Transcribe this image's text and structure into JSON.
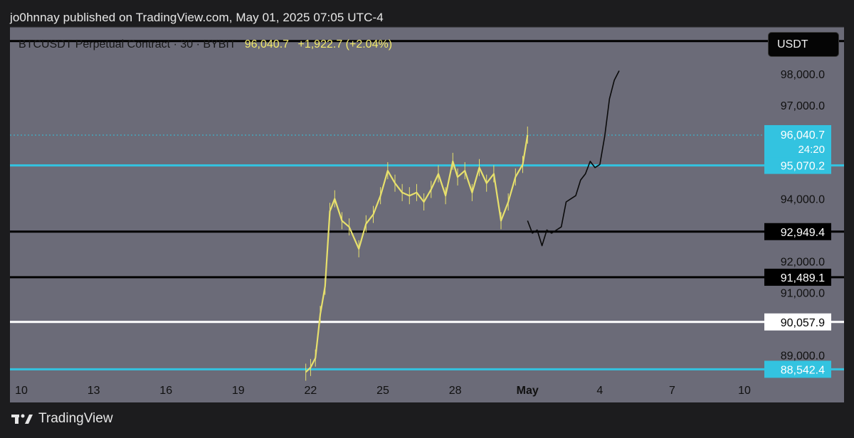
{
  "publish": "jo0hnnay published on TradingView.com, May 01, 2025 07:05 UTC-4",
  "header": {
    "symbol": "BTCUSDT Perpetual Contract · 30 · BYBIT",
    "price": "96,040.7",
    "change": "+1,922.7 (+2.04%)"
  },
  "currency_button": "USDT",
  "footer": {
    "brand": "TradingView"
  },
  "colors": {
    "plot_bg": "#6b6b78",
    "cyan": "#33c3e0",
    "black": "#000000",
    "white": "#ffffff",
    "candles": "#e7e06c"
  },
  "chart_data": {
    "type": "line",
    "x_ticks": [
      "10",
      "13",
      "16",
      "19",
      "22",
      "25",
      "28",
      "May",
      "4",
      "7",
      "10"
    ],
    "y_ticks": [
      "98,000.0",
      "97,000.0",
      "94,000.0",
      "92,000.0",
      "91,000.0",
      "89,000.0"
    ],
    "ylim": [
      88300,
      99500
    ],
    "last_price": {
      "value": 96040.7,
      "label": "96,040.7",
      "countdown": "24:20"
    },
    "levels": [
      {
        "value": 99050,
        "label": "",
        "color": "black"
      },
      {
        "value": 95070.2,
        "label": "95,070.2",
        "color": "cyan"
      },
      {
        "value": 92949.4,
        "label": "92,949.4",
        "color": "black"
      },
      {
        "value": 91489.1,
        "label": "91,489.1",
        "color": "black"
      },
      {
        "value": 90057.9,
        "label": "90,057.9",
        "color": "white"
      },
      {
        "value": 88542.4,
        "label": "88,542.4",
        "color": "cyan"
      }
    ],
    "price_series": {
      "name": "",
      "x": [
        21.8,
        22.0,
        22.2,
        22.4,
        22.6,
        22.8,
        23.0,
        23.3,
        23.6,
        24.0,
        24.3,
        24.6,
        24.9,
        25.2,
        25.5,
        25.8,
        26.1,
        26.4,
        26.7,
        27.0,
        27.3,
        27.6,
        27.9,
        28.1,
        28.4,
        28.7,
        29.0,
        29.3,
        29.6,
        29.9,
        30.2,
        30.5,
        30.8,
        31.0
      ],
      "y": [
        88450,
        88600,
        88900,
        90300,
        91200,
        93600,
        94000,
        93300,
        93100,
        92400,
        93200,
        93500,
        94100,
        94900,
        94500,
        94200,
        94100,
        94200,
        93900,
        94300,
        94800,
        94100,
        95200,
        94700,
        94900,
        94200,
        95000,
        94500,
        94800,
        93300,
        93900,
        94700,
        95100,
        96040.7
      ]
    },
    "projection": {
      "x": [
        31.0,
        31.2,
        31.4,
        31.6,
        31.8,
        32.0,
        32.2,
        32.4,
        32.6,
        32.8,
        33.0,
        33.2,
        33.4,
        33.6,
        33.8,
        34.0,
        34.2,
        34.4,
        34.6,
        34.8
      ],
      "y": [
        93300,
        92900,
        93000,
        92500,
        93000,
        92900,
        93000,
        93100,
        93900,
        94000,
        94100,
        94600,
        94800,
        95200,
        95000,
        95100,
        96000,
        97200,
        97800,
        98100
      ]
    }
  }
}
